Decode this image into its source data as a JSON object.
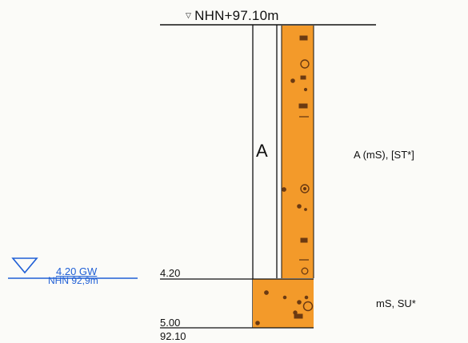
{
  "borehole": {
    "top_elevation_label": "NHN+97.10m",
    "top_marker_icon": "elevation-triangle-icon",
    "layers": [
      {
        "letter": "A",
        "description": "A (mS), [ST*]",
        "bottom_depth_label": "4.20",
        "color": "#f39a2a"
      },
      {
        "letter": "",
        "description": "mS, SU*",
        "bottom_depth_label": "5.00",
        "color": "#f39a2a"
      }
    ],
    "bottom_elevation_label": "92.10",
    "groundwater": {
      "depth_label": "4.20 GW",
      "elevation_label": "NHN 92,9m",
      "icon": "groundwater-triangle-icon",
      "color": "#1f5fd6"
    }
  }
}
